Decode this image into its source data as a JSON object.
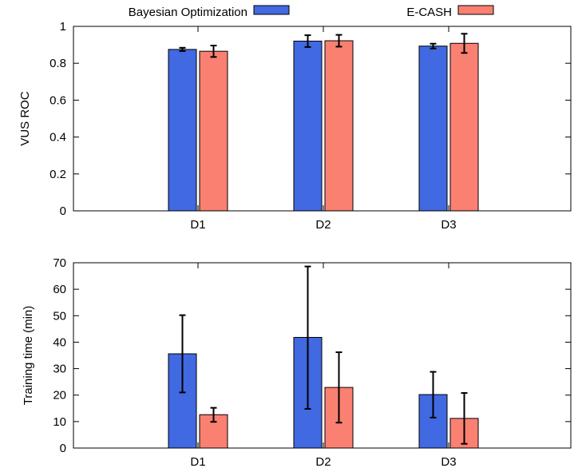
{
  "legend": {
    "items": [
      {
        "label": "Bayesian Optimization",
        "color": "#4169e1"
      },
      {
        "label": "E-CASH",
        "color": "#fa8072"
      }
    ],
    "placement": "top"
  },
  "chart_data": [
    {
      "type": "bar",
      "title": "",
      "xlabel": "",
      "ylabel": "VUS ROC",
      "categories": [
        "D1",
        "D2",
        "D3"
      ],
      "ylim": [
        0,
        1
      ],
      "yticks": [
        0,
        0.2,
        0.4,
        0.6,
        0.8,
        1
      ],
      "ytick_labels": [
        "0",
        "0.2",
        "0.4",
        "0.6",
        "0.8",
        "1"
      ],
      "grid": false,
      "series": [
        {
          "name": "Bayesian Optimization",
          "color": "#4169e1",
          "values": [
            0.875,
            0.92,
            0.893
          ],
          "err_low": [
            0.866,
            0.888,
            0.88
          ],
          "err_high": [
            0.884,
            0.952,
            0.906
          ]
        },
        {
          "name": "E-CASH",
          "color": "#fa8072",
          "values": [
            0.865,
            0.922,
            0.908
          ],
          "err_low": [
            0.834,
            0.89,
            0.856
          ],
          "err_high": [
            0.896,
            0.954,
            0.96
          ]
        }
      ]
    },
    {
      "type": "bar",
      "title": "",
      "xlabel": "",
      "ylabel": "Training time (min)",
      "categories": [
        "D1",
        "D2",
        "D3"
      ],
      "ylim": [
        0,
        70
      ],
      "yticks": [
        0,
        10,
        20,
        30,
        40,
        50,
        60,
        70
      ],
      "ytick_labels": [
        "0",
        "10",
        "20",
        "30",
        "40",
        "50",
        "60",
        "70"
      ],
      "grid": false,
      "series": [
        {
          "name": "Bayesian Optimization",
          "color": "#4169e1",
          "values": [
            35.6,
            41.8,
            20.2
          ],
          "err_low": [
            21.0,
            14.8,
            11.5
          ],
          "err_high": [
            50.2,
            68.6,
            28.8
          ]
        },
        {
          "name": "E-CASH",
          "color": "#fa8072",
          "values": [
            12.6,
            22.9,
            11.2
          ],
          "err_low": [
            9.9,
            9.6,
            1.6
          ],
          "err_high": [
            15.2,
            36.2,
            20.8
          ]
        }
      ]
    }
  ]
}
